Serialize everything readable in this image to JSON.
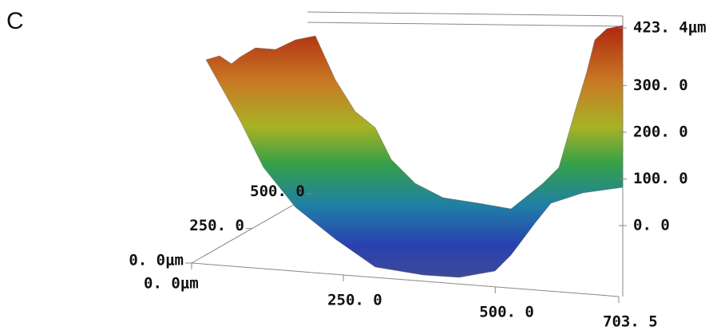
{
  "chart_data": {
    "type": "surface",
    "title": "C",
    "xlim": [
      0,
      703.5
    ],
    "xticks": [
      {
        "value": 0,
        "label": "0. 0μm"
      },
      {
        "value": 250,
        "label": "250. 0"
      },
      {
        "value": 500,
        "label": "500. 0"
      },
      {
        "value": 703.5,
        "label": "703. 5"
      }
    ],
    "ylim": [
      0,
      560
    ],
    "yticks": [
      {
        "value": 0,
        "label": "0. 0μm"
      },
      {
        "value": 250,
        "label": "250. 0"
      },
      {
        "value": 500,
        "label": "500. 0"
      }
    ],
    "zlim": [
      0,
      423.4
    ],
    "zticks": [
      {
        "value": 0,
        "label": "0. 0"
      },
      {
        "value": 100,
        "label": "100. 0"
      },
      {
        "value": 200,
        "label": "200. 0"
      },
      {
        "value": 300,
        "label": "300. 0"
      },
      {
        "value": 423.4,
        "label": "423. 4μm"
      }
    ]
  }
}
